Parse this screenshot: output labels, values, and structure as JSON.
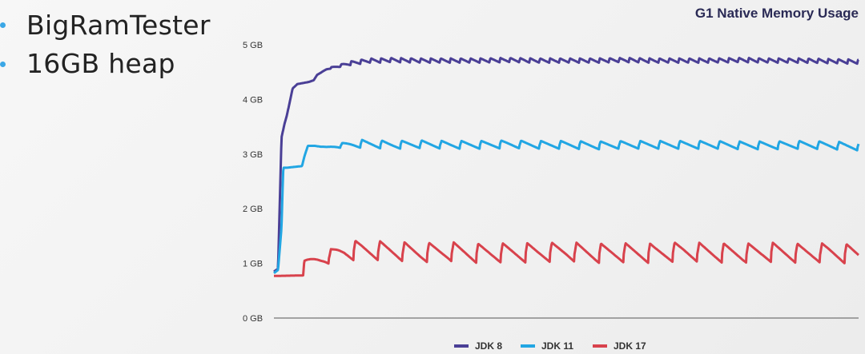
{
  "slide": {
    "bullets": [
      "BigRamTester",
      "16GB heap"
    ]
  },
  "chart_data": {
    "type": "line",
    "title": "G1 Native Memory Usage",
    "xlabel": "",
    "ylabel": "",
    "y_unit": "GB",
    "yticks": [
      "0 GB",
      "1 GB",
      "2 GB",
      "3 GB",
      "4 GB",
      "5 GB"
    ],
    "ylim": [
      0,
      5
    ],
    "xlim": [
      0,
      100
    ],
    "grid": false,
    "legend_position": "bottom",
    "series": [
      {
        "name": "JDK 8",
        "color": "#4a3f96",
        "x": [
          0,
          0.7,
          1.3,
          1.8,
          2.2,
          2.6,
          3.2,
          4.0,
          5.0,
          6.0,
          6.8,
          7.4,
          8.2,
          9.0,
          10.0,
          11.0,
          12.0,
          13.5,
          15.0,
          16.5,
          18.0,
          20.0,
          25.0,
          30.0,
          35.0,
          40.0,
          45.0,
          50.0,
          55.0,
          60.0,
          65.0,
          70.0,
          75.0,
          80.0,
          85.0,
          90.0,
          95.0,
          100.0
        ],
        "values": [
          0.85,
          0.9,
          3.3,
          3.55,
          3.7,
          3.9,
          4.2,
          4.28,
          4.3,
          4.32,
          4.35,
          4.45,
          4.5,
          4.55,
          4.58,
          4.6,
          4.63,
          4.66,
          4.68,
          4.7,
          4.7,
          4.71,
          4.7,
          4.7,
          4.7,
          4.71,
          4.7,
          4.7,
          4.7,
          4.71,
          4.7,
          4.7,
          4.7,
          4.71,
          4.7,
          4.7,
          4.69,
          4.68
        ]
      },
      {
        "name": "JDK 11",
        "color": "#22a6e3",
        "x": [
          0,
          0.7,
          1.3,
          1.6,
          2.2,
          4.8,
          5.2,
          5.8,
          7.0,
          9.0,
          12.0,
          15.0,
          20.0,
          25.0,
          30.0,
          35.0,
          40.0,
          45.0,
          50.0,
          55.0,
          60.0,
          65.0,
          70.0,
          75.0,
          80.0,
          85.0,
          90.0,
          95.0,
          100.0
        ],
        "values": [
          0.82,
          0.88,
          1.65,
          2.75,
          2.75,
          2.78,
          2.95,
          3.15,
          3.15,
          3.12,
          3.15,
          3.17,
          3.15,
          3.16,
          3.15,
          3.15,
          3.16,
          3.15,
          3.15,
          3.14,
          3.15,
          3.15,
          3.15,
          3.15,
          3.14,
          3.14,
          3.15,
          3.14,
          3.12
        ]
      },
      {
        "name": "JDK 17",
        "color": "#d8424c",
        "x": [
          0,
          5.0,
          5.2,
          8.0,
          10.0,
          12.0,
          15.0,
          20.0,
          25.0,
          30.0,
          35.0,
          40.0,
          45.0,
          50.0,
          55.0,
          60.0,
          65.0,
          70.0,
          75.0,
          80.0,
          85.0,
          90.0,
          95.0,
          100.0
        ],
        "values": [
          0.77,
          0.78,
          1.05,
          1.05,
          1.1,
          1.18,
          1.2,
          1.18,
          1.15,
          1.17,
          1.14,
          1.15,
          1.15,
          1.17,
          1.14,
          1.15,
          1.14,
          1.17,
          1.15,
          1.14,
          1.16,
          1.14,
          1.15,
          1.12
        ]
      }
    ],
    "sawtooth": [
      {
        "period": 1.7,
        "amplitude": 0.05
      },
      {
        "period": 3.4,
        "amplitude": 0.09
      },
      {
        "period": 4.2,
        "amplitude": 0.22
      }
    ]
  }
}
